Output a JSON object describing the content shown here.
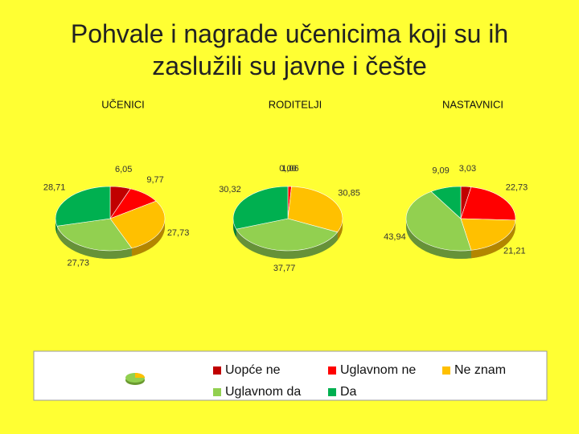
{
  "title": "Pohvale i nagrade učenicima koji su ih zaslužili su javne i češte",
  "legend": {
    "labels": [
      "Uopće ne",
      "Uglavnom ne",
      "Ne znam",
      "Uglavnom da",
      "Da"
    ],
    "colors": [
      "#c00000",
      "#ff0000",
      "#ffc000",
      "#92d050",
      "#00b050"
    ]
  },
  "chart_data": [
    {
      "type": "pie",
      "title": "UČENICI",
      "values": [
        6.05,
        9.77,
        27.73,
        27.73,
        28.71
      ],
      "value_labels": [
        "6,05",
        "9,77",
        "27,73",
        "27,73",
        "28,71"
      ]
    },
    {
      "type": "pie",
      "title": "RODITELJI",
      "values": [
        0.0,
        1.06,
        30.85,
        37.77,
        30.32
      ],
      "value_labels": [
        "0,00",
        "1,06",
        "30,85",
        "37,77",
        "30,32"
      ]
    },
    {
      "type": "pie",
      "title": "NASTAVNICI",
      "values": [
        3.03,
        22.73,
        21.21,
        43.94,
        9.09
      ],
      "value_labels": [
        "3,03",
        "22,73",
        "21,21",
        "43,94",
        "9,09"
      ]
    }
  ]
}
